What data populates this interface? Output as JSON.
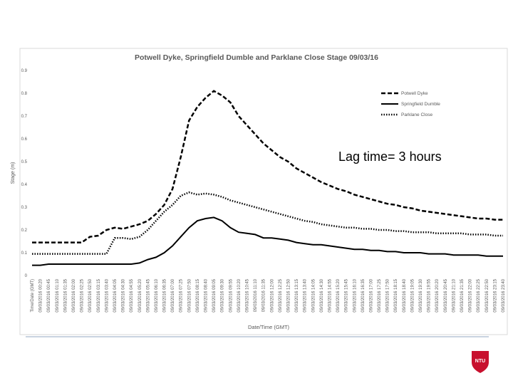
{
  "chart_data": {
    "type": "line",
    "title": "Potwell Dyke, Springfield Dumble and Parklane Close Stage 09/03/16",
    "x_label": "Date/Time (GMT)",
    "y_label": "Stage (m)",
    "annotation": "Lag time= 3 hours",
    "categories": [
      "Time/Date (GMT)",
      "09/03/2016 00:20",
      "09/03/2016 00:45",
      "09/03/2016 01:10",
      "09/03/2016 01:35",
      "09/03/2016 02:00",
      "09/03/2016 02:25",
      "09/03/2016 02:50",
      "09/03/2016 03:15",
      "09/03/2016 03:40",
      "09/03/2016 04:05",
      "09/03/2016 04:30",
      "09/03/2016 04:55",
      "09/03/2016 05:20",
      "09/03/2016 05:45",
      "09/03/2016 06:10",
      "09/03/2016 06:35",
      "09/03/2016 07:00",
      "09/03/2016 07:25",
      "09/03/2016 07:50",
      "09/03/2016 08:15",
      "09/03/2016 08:40",
      "09/03/2016 09:05",
      "09/03/2016 09:30",
      "09/03/2016 09:55",
      "09/03/2016 10:20",
      "09/03/2016 10:45",
      "09/03/2016 11:10",
      "09/03/2016 11:35",
      "09/03/2016 12:00",
      "09/03/2016 12:25",
      "09/03/2016 12:50",
      "09/03/2016 13:15",
      "09/03/2016 13:40",
      "09/03/2016 14:05",
      "09/03/2016 14:30",
      "09/03/2016 14:55",
      "09/03/2016 15:20",
      "09/03/2016 15:45",
      "09/03/2016 16:10",
      "09/03/2016 16:35",
      "09/03/2016 17:00",
      "09/03/2016 17:25",
      "09/03/2016 17:50",
      "09/03/2016 18:15",
      "09/03/2016 18:40",
      "09/03/2016 19:05",
      "09/03/2016 19:30",
      "09/03/2016 19:55",
      "09/03/2016 20:20",
      "09/03/2016 20:45",
      "09/03/2016 21:10",
      "09/03/2016 21:35",
      "09/03/2016 22:00",
      "09/03/2016 22:25",
      "09/03/2016 22:50",
      "09/03/2016 23:15",
      "09/03/2016 23:40"
    ],
    "series": [
      {
        "name": "Potwell Dyke",
        "color": "#000000",
        "dash": "dashed",
        "values": [
          0.145,
          0.145,
          0.145,
          0.145,
          0.145,
          0.145,
          0.145,
          0.17,
          0.175,
          0.2,
          0.21,
          0.205,
          0.215,
          0.225,
          0.24,
          0.27,
          0.31,
          0.38,
          0.52,
          0.68,
          0.74,
          0.78,
          0.81,
          0.79,
          0.76,
          0.7,
          0.66,
          0.62,
          0.58,
          0.55,
          0.52,
          0.5,
          0.47,
          0.45,
          0.43,
          0.41,
          0.395,
          0.38,
          0.37,
          0.355,
          0.345,
          0.335,
          0.325,
          0.315,
          0.31,
          0.3,
          0.295,
          0.285,
          0.28,
          0.275,
          0.27,
          0.265,
          0.26,
          0.255,
          0.25,
          0.25,
          0.245,
          0.245
        ]
      },
      {
        "name": "Springfield Dumble",
        "color": "#000000",
        "dash": "solid",
        "values": [
          0.045,
          0.045,
          0.05,
          0.05,
          0.05,
          0.05,
          0.05,
          0.05,
          0.05,
          0.05,
          0.05,
          0.05,
          0.05,
          0.055,
          0.07,
          0.08,
          0.1,
          0.13,
          0.17,
          0.21,
          0.24,
          0.25,
          0.255,
          0.24,
          0.21,
          0.19,
          0.185,
          0.18,
          0.165,
          0.165,
          0.16,
          0.155,
          0.145,
          0.14,
          0.135,
          0.135,
          0.13,
          0.125,
          0.12,
          0.115,
          0.115,
          0.11,
          0.11,
          0.105,
          0.105,
          0.1,
          0.1,
          0.1,
          0.095,
          0.095,
          0.095,
          0.09,
          0.09,
          0.09,
          0.09,
          0.085,
          0.085,
          0.085
        ]
      },
      {
        "name": "Parklane Close",
        "color": "#000000",
        "dash": "dotted",
        "values": [
          0.095,
          0.095,
          0.095,
          0.095,
          0.095,
          0.095,
          0.095,
          0.095,
          0.095,
          0.095,
          0.165,
          0.165,
          0.16,
          0.17,
          0.2,
          0.24,
          0.28,
          0.31,
          0.35,
          0.365,
          0.355,
          0.36,
          0.355,
          0.345,
          0.33,
          0.32,
          0.31,
          0.3,
          0.29,
          0.28,
          0.27,
          0.26,
          0.25,
          0.24,
          0.235,
          0.225,
          0.22,
          0.215,
          0.21,
          0.21,
          0.205,
          0.205,
          0.2,
          0.2,
          0.195,
          0.195,
          0.19,
          0.19,
          0.19,
          0.185,
          0.185,
          0.185,
          0.185,
          0.18,
          0.18,
          0.18,
          0.175,
          0.175
        ]
      }
    ],
    "ylim": [
      0,
      0.9
    ],
    "yticks": [
      0,
      0.1,
      0.2,
      0.3,
      0.4,
      0.5,
      0.6,
      0.7,
      0.8,
      0.9
    ],
    "grid": false,
    "legend": "top-right"
  },
  "slide": {
    "logo": "NTU"
  }
}
